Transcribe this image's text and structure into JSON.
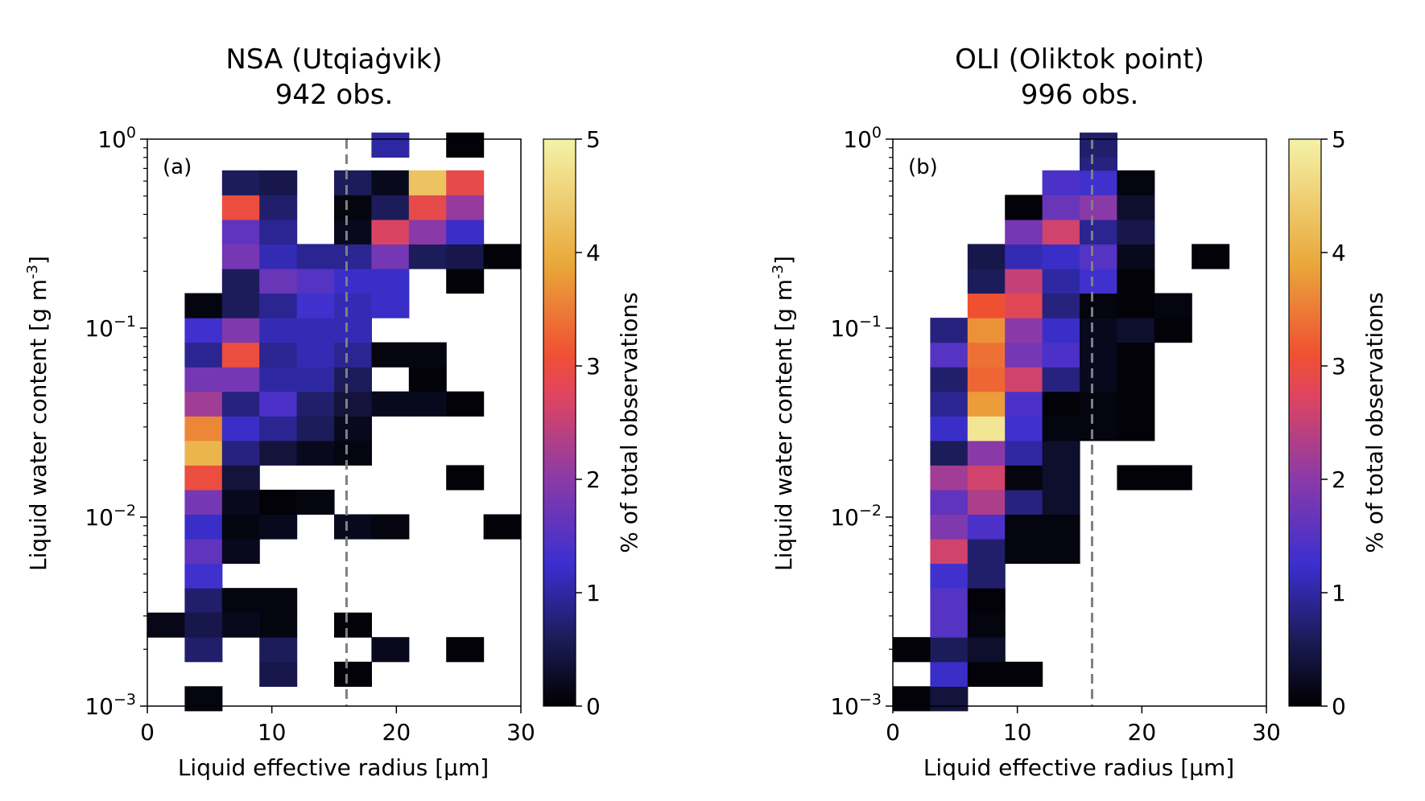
{
  "chart_data": [
    {
      "type": "heatmap",
      "panel_label": "(a)",
      "title_lines": [
        "NSA (Utqiaġvik)",
        "942 obs."
      ],
      "xlabel": "Liquid effective radius [µm]",
      "ylabel": "Liquid water content [g m",
      "ylabel_sup": "-3",
      "ylabel_end": "]",
      "xlim": [
        0,
        30
      ],
      "ylim": [
        0.001,
        1
      ],
      "yscale": "log",
      "x_ticks": [
        {
          "value": 0,
          "label": "0"
        },
        {
          "value": 10,
          "label": "10"
        },
        {
          "value": 20,
          "label": "20"
        },
        {
          "value": 30,
          "label": "30"
        }
      ],
      "y_ticks": [
        {
          "exp": -3,
          "base": "10",
          "sup": "−3"
        },
        {
          "exp": -2,
          "base": "10",
          "sup": "−2"
        },
        {
          "exp": -1,
          "base": "10",
          "sup": "−1"
        },
        {
          "exp": 0,
          "base": "10",
          "sup": "0"
        }
      ],
      "x_bin_width": 3,
      "y_log_bin_width": 0.13,
      "reference_line_x": 16,
      "colorbar": {
        "label": "% of total observations",
        "range": [
          0,
          5
        ],
        "ticks": [
          "0",
          "1",
          "2",
          "3",
          "4",
          "5"
        ]
      },
      "cells": [
        {
          "x": 1.5,
          "y": -2.57,
          "v": 0.15
        },
        {
          "x": 4.5,
          "y": -2.96,
          "v": 0.1
        },
        {
          "x": 4.5,
          "y": -2.7,
          "v": 0.7
        },
        {
          "x": 4.5,
          "y": -2.44,
          "v": 0.7
        },
        {
          "x": 4.5,
          "y": -2.57,
          "v": 0.5
        },
        {
          "x": 4.5,
          "y": -2.31,
          "v": 1.3
        },
        {
          "x": 4.5,
          "y": -2.18,
          "v": 1.6
        },
        {
          "x": 4.5,
          "y": -2.05,
          "v": 1.2
        },
        {
          "x": 4.5,
          "y": -1.92,
          "v": 1.8
        },
        {
          "x": 4.5,
          "y": -1.79,
          "v": 3.0
        },
        {
          "x": 4.5,
          "y": -1.66,
          "v": 4.1
        },
        {
          "x": 4.5,
          "y": -1.53,
          "v": 3.6
        },
        {
          "x": 4.5,
          "y": -1.4,
          "v": 2.2
        },
        {
          "x": 4.5,
          "y": -1.27,
          "v": 1.8
        },
        {
          "x": 4.5,
          "y": -1.14,
          "v": 0.9
        },
        {
          "x": 4.5,
          "y": -1.01,
          "v": 1.3
        },
        {
          "x": 4.5,
          "y": -0.88,
          "v": 0.1
        },
        {
          "x": 7.5,
          "y": -2.44,
          "v": 0.1
        },
        {
          "x": 7.5,
          "y": -2.57,
          "v": 0.2
        },
        {
          "x": 7.5,
          "y": -2.18,
          "v": 0.2
        },
        {
          "x": 7.5,
          "y": -2.05,
          "v": 0.1
        },
        {
          "x": 7.5,
          "y": -1.92,
          "v": 0.2
        },
        {
          "x": 7.5,
          "y": -1.79,
          "v": 0.4
        },
        {
          "x": 7.5,
          "y": -1.66,
          "v": 0.8
        },
        {
          "x": 7.5,
          "y": -1.53,
          "v": 1.2
        },
        {
          "x": 7.5,
          "y": -1.4,
          "v": 0.8
        },
        {
          "x": 7.5,
          "y": -1.27,
          "v": 1.8
        },
        {
          "x": 7.5,
          "y": -1.14,
          "v": 3.0
        },
        {
          "x": 7.5,
          "y": -1.01,
          "v": 1.9
        },
        {
          "x": 7.5,
          "y": -0.88,
          "v": 0.6
        },
        {
          "x": 7.5,
          "y": -0.75,
          "v": 0.6
        },
        {
          "x": 7.5,
          "y": -0.62,
          "v": 1.8
        },
        {
          "x": 7.5,
          "y": -0.49,
          "v": 1.6
        },
        {
          "x": 7.5,
          "y": -0.36,
          "v": 3.0
        },
        {
          "x": 7.5,
          "y": -0.23,
          "v": 0.6
        },
        {
          "x": 10.5,
          "y": -2.83,
          "v": 0.5
        },
        {
          "x": 10.5,
          "y": -2.7,
          "v": 0.6
        },
        {
          "x": 10.5,
          "y": -2.44,
          "v": 0.1
        },
        {
          "x": 10.5,
          "y": -2.57,
          "v": 0.1
        },
        {
          "x": 10.5,
          "y": -2.05,
          "v": 0.2
        },
        {
          "x": 10.5,
          "y": -1.92,
          "v": 0.05
        },
        {
          "x": 10.5,
          "y": -1.66,
          "v": 0.4
        },
        {
          "x": 10.5,
          "y": -1.53,
          "v": 0.9
        },
        {
          "x": 10.5,
          "y": -1.4,
          "v": 1.4
        },
        {
          "x": 10.5,
          "y": -1.27,
          "v": 1.0
        },
        {
          "x": 10.5,
          "y": -1.14,
          "v": 0.9
        },
        {
          "x": 10.5,
          "y": -1.01,
          "v": 1.1
        },
        {
          "x": 10.5,
          "y": -0.88,
          "v": 0.9
        },
        {
          "x": 10.5,
          "y": -0.75,
          "v": 1.7
        },
        {
          "x": 10.5,
          "y": -0.62,
          "v": 1.1
        },
        {
          "x": 10.5,
          "y": -0.49,
          "v": 0.9
        },
        {
          "x": 10.5,
          "y": -0.36,
          "v": 0.7
        },
        {
          "x": 10.5,
          "y": -0.23,
          "v": 0.5
        },
        {
          "x": 13.5,
          "y": -1.92,
          "v": 0.1
        },
        {
          "x": 13.5,
          "y": -1.66,
          "v": 0.2
        },
        {
          "x": 13.5,
          "y": -1.53,
          "v": 0.6
        },
        {
          "x": 13.5,
          "y": -1.4,
          "v": 0.7
        },
        {
          "x": 13.5,
          "y": -1.27,
          "v": 1.0
        },
        {
          "x": 13.5,
          "y": -1.14,
          "v": 1.1
        },
        {
          "x": 13.5,
          "y": -1.01,
          "v": 1.1
        },
        {
          "x": 13.5,
          "y": -0.88,
          "v": 1.3
        },
        {
          "x": 13.5,
          "y": -0.75,
          "v": 1.5
        },
        {
          "x": 13.5,
          "y": -0.62,
          "v": 0.9
        },
        {
          "x": 16.5,
          "y": -2.83,
          "v": 0.05
        },
        {
          "x": 16.5,
          "y": -2.57,
          "v": 0.05
        },
        {
          "x": 16.5,
          "y": -2.05,
          "v": 0.2
        },
        {
          "x": 16.5,
          "y": -1.66,
          "v": 0.1
        },
        {
          "x": 16.5,
          "y": -1.53,
          "v": 0.2
        },
        {
          "x": 16.5,
          "y": -1.4,
          "v": 0.4
        },
        {
          "x": 16.5,
          "y": -1.27,
          "v": 0.6
        },
        {
          "x": 16.5,
          "y": -1.14,
          "v": 0.9
        },
        {
          "x": 16.5,
          "y": -1.01,
          "v": 1.1
        },
        {
          "x": 16.5,
          "y": -0.88,
          "v": 1.1
        },
        {
          "x": 16.5,
          "y": -0.75,
          "v": 1.2
        },
        {
          "x": 16.5,
          "y": -0.62,
          "v": 0.9
        },
        {
          "x": 16.5,
          "y": -0.49,
          "v": 0.2
        },
        {
          "x": 16.5,
          "y": -0.36,
          "v": 0.1
        },
        {
          "x": 16.5,
          "y": -0.23,
          "v": 0.6
        },
        {
          "x": 19.5,
          "y": -2.7,
          "v": 0.2
        },
        {
          "x": 19.5,
          "y": -2.05,
          "v": 0.1
        },
        {
          "x": 19.5,
          "y": -1.4,
          "v": 0.2
        },
        {
          "x": 19.5,
          "y": -1.14,
          "v": 0.1
        },
        {
          "x": 19.5,
          "y": -0.88,
          "v": 1.2
        },
        {
          "x": 19.5,
          "y": -0.75,
          "v": 1.2
        },
        {
          "x": 19.5,
          "y": -0.62,
          "v": 1.8
        },
        {
          "x": 19.5,
          "y": -0.49,
          "v": 2.7
        },
        {
          "x": 19.5,
          "y": -0.36,
          "v": 0.6
        },
        {
          "x": 19.5,
          "y": -0.23,
          "v": 0.2
        },
        {
          "x": 19.5,
          "y": -0.03,
          "v": 1.0
        },
        {
          "x": 22.5,
          "y": -1.4,
          "v": 0.2
        },
        {
          "x": 22.5,
          "y": -1.27,
          "v": 0.05
        },
        {
          "x": 22.5,
          "y": -1.14,
          "v": 0.1
        },
        {
          "x": 22.5,
          "y": -0.62,
          "v": 0.6
        },
        {
          "x": 22.5,
          "y": -0.49,
          "v": 2.0
        },
        {
          "x": 22.5,
          "y": -0.36,
          "v": 2.9
        },
        {
          "x": 22.5,
          "y": -0.23,
          "v": 4.3
        },
        {
          "x": 25.5,
          "y": -2.7,
          "v": 0.05
        },
        {
          "x": 25.5,
          "y": -1.79,
          "v": 0.05
        },
        {
          "x": 25.5,
          "y": -1.4,
          "v": 0.05
        },
        {
          "x": 25.5,
          "y": -0.75,
          "v": 0.05
        },
        {
          "x": 25.5,
          "y": -0.62,
          "v": 0.5
        },
        {
          "x": 25.5,
          "y": -0.49,
          "v": 1.2
        },
        {
          "x": 25.5,
          "y": -0.36,
          "v": 2.1
        },
        {
          "x": 25.5,
          "y": -0.23,
          "v": 2.9
        },
        {
          "x": 25.5,
          "y": -0.03,
          "v": 0.05
        },
        {
          "x": 28.5,
          "y": -2.05,
          "v": 0.05
        },
        {
          "x": 28.5,
          "y": -0.62,
          "v": 0.05
        }
      ]
    },
    {
      "type": "heatmap",
      "panel_label": "(b)",
      "title_lines": [
        "OLI (Oliktok point)",
        "996 obs."
      ],
      "xlabel": "Liquid effective radius [µm]",
      "ylabel": "Liquid water content [g m",
      "ylabel_sup": "-3",
      "ylabel_end": "]",
      "xlim": [
        0,
        30
      ],
      "ylim": [
        0.001,
        1
      ],
      "yscale": "log",
      "x_ticks": [
        {
          "value": 0,
          "label": "0"
        },
        {
          "value": 10,
          "label": "10"
        },
        {
          "value": 20,
          "label": "20"
        },
        {
          "value": 30,
          "label": "30"
        }
      ],
      "y_ticks": [
        {
          "exp": -3,
          "base": "10",
          "sup": "−3"
        },
        {
          "exp": -2,
          "base": "10",
          "sup": "−2"
        },
        {
          "exp": -1,
          "base": "10",
          "sup": "−1"
        },
        {
          "exp": 0,
          "base": "10",
          "sup": "0"
        }
      ],
      "x_bin_width": 3,
      "y_log_bin_width": 0.13,
      "reference_line_x": 16,
      "colorbar": {
        "label": "% of total observations",
        "range": [
          0,
          5
        ],
        "ticks": [
          "0",
          "1",
          "2",
          "3",
          "4",
          "5"
        ]
      },
      "cells": [
        {
          "x": 1.5,
          "y": -2.96,
          "v": 0.05
        },
        {
          "x": 1.5,
          "y": -2.7,
          "v": 0.05
        },
        {
          "x": 4.5,
          "y": -2.96,
          "v": 0.4
        },
        {
          "x": 4.5,
          "y": -2.83,
          "v": 1.2
        },
        {
          "x": 4.5,
          "y": -2.7,
          "v": 0.6
        },
        {
          "x": 4.5,
          "y": -2.57,
          "v": 1.5
        },
        {
          "x": 4.5,
          "y": -2.44,
          "v": 1.5
        },
        {
          "x": 4.5,
          "y": -2.31,
          "v": 1.3
        },
        {
          "x": 4.5,
          "y": -2.18,
          "v": 2.6
        },
        {
          "x": 4.5,
          "y": -2.05,
          "v": 1.9
        },
        {
          "x": 4.5,
          "y": -1.92,
          "v": 1.6
        },
        {
          "x": 4.5,
          "y": -1.79,
          "v": 2.2
        },
        {
          "x": 4.5,
          "y": -1.66,
          "v": 0.6
        },
        {
          "x": 4.5,
          "y": -1.53,
          "v": 1.2
        },
        {
          "x": 4.5,
          "y": -1.4,
          "v": 0.9
        },
        {
          "x": 4.5,
          "y": -1.27,
          "v": 0.7
        },
        {
          "x": 4.5,
          "y": -1.14,
          "v": 1.5
        },
        {
          "x": 4.5,
          "y": -1.01,
          "v": 0.8
        },
        {
          "x": 7.5,
          "y": -2.83,
          "v": 0.05
        },
        {
          "x": 7.5,
          "y": -2.7,
          "v": 0.3
        },
        {
          "x": 7.5,
          "y": -2.57,
          "v": 0.1
        },
        {
          "x": 7.5,
          "y": -2.44,
          "v": 0.05
        },
        {
          "x": 7.5,
          "y": -2.31,
          "v": 0.7
        },
        {
          "x": 7.5,
          "y": -2.18,
          "v": 0.7
        },
        {
          "x": 7.5,
          "y": -2.05,
          "v": 1.4
        },
        {
          "x": 7.5,
          "y": -1.92,
          "v": 2.3
        },
        {
          "x": 7.5,
          "y": -1.79,
          "v": 2.6
        },
        {
          "x": 7.5,
          "y": -1.66,
          "v": 2.0
        },
        {
          "x": 7.5,
          "y": -1.53,
          "v": 4.8
        },
        {
          "x": 7.5,
          "y": -1.4,
          "v": 3.8
        },
        {
          "x": 7.5,
          "y": -1.27,
          "v": 3.3
        },
        {
          "x": 7.5,
          "y": -1.14,
          "v": 3.4
        },
        {
          "x": 7.5,
          "y": -1.01,
          "v": 3.7
        },
        {
          "x": 7.5,
          "y": -0.88,
          "v": 3.1
        },
        {
          "x": 7.5,
          "y": -0.75,
          "v": 0.6
        },
        {
          "x": 7.5,
          "y": -0.62,
          "v": 0.5
        },
        {
          "x": 10.5,
          "y": -2.83,
          "v": 0.05
        },
        {
          "x": 10.5,
          "y": -2.18,
          "v": 0.1
        },
        {
          "x": 10.5,
          "y": -2.05,
          "v": 0.1
        },
        {
          "x": 10.5,
          "y": -1.92,
          "v": 0.8
        },
        {
          "x": 10.5,
          "y": -1.79,
          "v": 0.1
        },
        {
          "x": 10.5,
          "y": -1.66,
          "v": 1.0
        },
        {
          "x": 10.5,
          "y": -1.53,
          "v": 1.3
        },
        {
          "x": 10.5,
          "y": -1.4,
          "v": 1.4
        },
        {
          "x": 10.5,
          "y": -1.27,
          "v": 2.6
        },
        {
          "x": 10.5,
          "y": -1.14,
          "v": 1.8
        },
        {
          "x": 10.5,
          "y": -1.01,
          "v": 2.0
        },
        {
          "x": 10.5,
          "y": -0.88,
          "v": 2.8
        },
        {
          "x": 10.5,
          "y": -0.75,
          "v": 2.5
        },
        {
          "x": 10.5,
          "y": -0.62,
          "v": 1.1
        },
        {
          "x": 10.5,
          "y": -0.49,
          "v": 1.8
        },
        {
          "x": 10.5,
          "y": -0.36,
          "v": 0.05
        },
        {
          "x": 13.5,
          "y": -2.18,
          "v": 0.1
        },
        {
          "x": 13.5,
          "y": -2.05,
          "v": 0.1
        },
        {
          "x": 13.5,
          "y": -1.92,
          "v": 0.3
        },
        {
          "x": 13.5,
          "y": -1.79,
          "v": 0.3
        },
        {
          "x": 13.5,
          "y": -1.66,
          "v": 0.3
        },
        {
          "x": 13.5,
          "y": -1.53,
          "v": 0.1
        },
        {
          "x": 13.5,
          "y": -1.4,
          "v": 0.05
        },
        {
          "x": 13.5,
          "y": -1.27,
          "v": 0.8
        },
        {
          "x": 13.5,
          "y": -1.14,
          "v": 1.4
        },
        {
          "x": 13.5,
          "y": -1.01,
          "v": 1.2
        },
        {
          "x": 13.5,
          "y": -0.88,
          "v": 0.8
        },
        {
          "x": 13.5,
          "y": -0.75,
          "v": 1.0
        },
        {
          "x": 13.5,
          "y": -0.62,
          "v": 1.2
        },
        {
          "x": 13.5,
          "y": -0.49,
          "v": 2.6
        },
        {
          "x": 13.5,
          "y": -0.36,
          "v": 1.7
        },
        {
          "x": 13.5,
          "y": -0.23,
          "v": 1.4
        },
        {
          "x": 16.5,
          "y": -1.53,
          "v": 0.1
        },
        {
          "x": 16.5,
          "y": -1.4,
          "v": 0.1
        },
        {
          "x": 16.5,
          "y": -1.27,
          "v": 0.2
        },
        {
          "x": 16.5,
          "y": -1.14,
          "v": 0.2
        },
        {
          "x": 16.5,
          "y": -1.01,
          "v": 0.2
        },
        {
          "x": 16.5,
          "y": -0.88,
          "v": 0.1
        },
        {
          "x": 16.5,
          "y": -0.75,
          "v": 1.3
        },
        {
          "x": 16.5,
          "y": -0.62,
          "v": 1.5
        },
        {
          "x": 16.5,
          "y": -0.49,
          "v": 0.9
        },
        {
          "x": 16.5,
          "y": -0.36,
          "v": 2.0
        },
        {
          "x": 16.5,
          "y": -0.23,
          "v": 1.3
        },
        {
          "x": 16.5,
          "y": -0.1,
          "v": 0.8
        },
        {
          "x": 16.5,
          "y": -0.03,
          "v": 0.7
        },
        {
          "x": 19.5,
          "y": -1.79,
          "v": 0.05
        },
        {
          "x": 19.5,
          "y": -1.53,
          "v": 0.05
        },
        {
          "x": 19.5,
          "y": -1.4,
          "v": 0.05
        },
        {
          "x": 19.5,
          "y": -1.27,
          "v": 0.05
        },
        {
          "x": 19.5,
          "y": -1.14,
          "v": 0.05
        },
        {
          "x": 19.5,
          "y": -1.01,
          "v": 0.3
        },
        {
          "x": 19.5,
          "y": -0.88,
          "v": 0.05
        },
        {
          "x": 19.5,
          "y": -0.75,
          "v": 0.05
        },
        {
          "x": 19.5,
          "y": -0.62,
          "v": 0.2
        },
        {
          "x": 19.5,
          "y": -0.49,
          "v": 0.5
        },
        {
          "x": 19.5,
          "y": -0.36,
          "v": 0.3
        },
        {
          "x": 19.5,
          "y": -0.23,
          "v": 0.1
        },
        {
          "x": 22.5,
          "y": -1.79,
          "v": 0.05
        },
        {
          "x": 22.5,
          "y": -1.01,
          "v": 0.05
        },
        {
          "x": 22.5,
          "y": -0.88,
          "v": 0.1
        },
        {
          "x": 25.5,
          "y": -0.62,
          "v": 0.05
        }
      ]
    }
  ]
}
